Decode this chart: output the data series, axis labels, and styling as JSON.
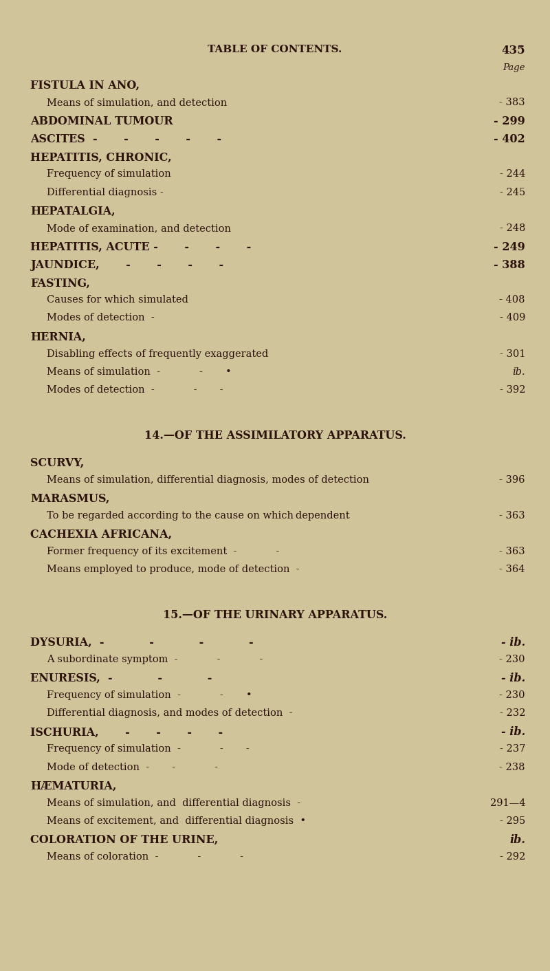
{
  "bg_color": "#cfc49a",
  "text_color": "#2d120a",
  "header_title": "TABLE OF CONTENTS.",
  "header_page_num": "435",
  "page_label": "Page",
  "figsize": [
    8.0,
    14.12
  ],
  "dpi": 100,
  "entries": [
    {
      "indent": 0,
      "bold": true,
      "text": "FISTULA IN ANO,",
      "page": "",
      "page_italic": false
    },
    {
      "indent": 1,
      "bold": false,
      "text": "Means of simulation, and detection",
      "dashes": "  -        -",
      "page": "- 383",
      "page_italic": false
    },
    {
      "indent": 0,
      "bold": true,
      "text": "ABDOMINAL TUMOUR",
      "dashes": " -     -    -",
      "page": "- 299",
      "page_italic": false
    },
    {
      "indent": 0,
      "bold": true,
      "text": "ASCITES  -     -     -     -     -",
      "page": "- 402",
      "page_italic": false
    },
    {
      "indent": 0,
      "bold": true,
      "text": "HEPATITIS, CHRONIC,",
      "page": "",
      "page_italic": false
    },
    {
      "indent": 1,
      "bold": false,
      "text": "Frequency of simulation",
      "dashes": " -     -     -",
      "page": "- 244",
      "page_italic": false
    },
    {
      "indent": 1,
      "bold": false,
      "text": "Differential diagnosis -",
      "dashes": "  -        -",
      "page": "- 245",
      "page_italic": false
    },
    {
      "indent": 0,
      "bold": true,
      "text": "HEPATALGIA,",
      "page": "",
      "page_italic": false
    },
    {
      "indent": 1,
      "bold": false,
      "text": "Mode of examination, and detection",
      "dashes": " •        -",
      "page": "- 248",
      "page_italic": false
    },
    {
      "indent": 0,
      "bold": true,
      "text": "HEPATITIS, ACUTE -     -     -     -",
      "page": "- 249",
      "page_italic": false
    },
    {
      "indent": 0,
      "bold": true,
      "text": "JAUNDICE,     -     -     -     -",
      "page": "- 388",
      "page_italic": false
    },
    {
      "indent": 0,
      "bold": true,
      "text": "FASTING,",
      "page": "",
      "page_italic": false
    },
    {
      "indent": 1,
      "bold": false,
      "text": "Causes for which simulated",
      "dashes": " -        -     -",
      "page": "- 408",
      "page_italic": false
    },
    {
      "indent": 1,
      "bold": false,
      "text": "Modes of detection  -",
      "dashes": "    -        -",
      "page": "- 409",
      "page_italic": false
    },
    {
      "indent": 0,
      "bold": true,
      "text": "HERNIA,",
      "page": "",
      "page_italic": false
    },
    {
      "indent": 1,
      "bold": false,
      "text": "Disabling effects of frequently exaggerated",
      "dashes": " -         ",
      "page": "- 301",
      "page_italic": false
    },
    {
      "indent": 1,
      "bold": false,
      "text": "Means of simulation  -        -     •",
      "page": "ib.",
      "page_italic": true
    },
    {
      "indent": 1,
      "bold": false,
      "text": "Modes of detection  -        -     -",
      "page": "- 392",
      "page_italic": false
    },
    {
      "indent": -1,
      "spacer": true,
      "spacer_size": 1.5
    },
    {
      "indent": 2,
      "bold": true,
      "text": "14.—OF THE ASSIMILATORY APPARATUS.",
      "center": true,
      "page": "",
      "page_italic": false
    },
    {
      "indent": -1,
      "spacer": true,
      "spacer_size": 0.5
    },
    {
      "indent": 0,
      "bold": true,
      "text": "SCURVY,",
      "page": "",
      "page_italic": false
    },
    {
      "indent": 1,
      "bold": false,
      "text": "Means of simulation, differential diagnosis, modes of detection",
      "page": "- 396",
      "page_italic": false
    },
    {
      "indent": 0,
      "bold": true,
      "text": "MARASMUS,",
      "page": "",
      "page_italic": false
    },
    {
      "indent": 1,
      "bold": false,
      "text": "To be regarded according to the cause on which dependent",
      "page": "- 363",
      "page_italic": false
    },
    {
      "indent": 0,
      "bold": true,
      "text": "CACHEXIA AFRICANA,",
      "page": "",
      "page_italic": false
    },
    {
      "indent": 1,
      "bold": false,
      "text": "Former frequency of its excitement  -        -",
      "page": "- 363",
      "page_italic": false
    },
    {
      "indent": 1,
      "bold": false,
      "text": "Means employed to produce, mode of detection  -",
      "page": "- 364",
      "page_italic": false
    },
    {
      "indent": -1,
      "spacer": true,
      "spacer_size": 1.5
    },
    {
      "indent": 2,
      "bold": true,
      "text": "15.—OF THE URINARY APPARATUS.",
      "center": true,
      "page": "",
      "page_italic": false
    },
    {
      "indent": -1,
      "spacer": true,
      "spacer_size": 0.5
    },
    {
      "indent": 0,
      "bold": true,
      "text": "DYSURIA,  -        -        -        -",
      "page": "- ib.",
      "page_italic": true
    },
    {
      "indent": 1,
      "bold": false,
      "text": "A subordinate symptom  -        -        -",
      "page": "- 230",
      "page_italic": false
    },
    {
      "indent": 0,
      "bold": true,
      "text": "ENURESIS,  -        -        -      ",
      "page": "- ib.",
      "page_italic": true
    },
    {
      "indent": 1,
      "bold": false,
      "text": "Frequency of simulation  -        -     •",
      "page": "- 230",
      "page_italic": false
    },
    {
      "indent": 1,
      "bold": false,
      "text": "Differential diagnosis, and modes of detection  -",
      "page": "- 232",
      "page_italic": false
    },
    {
      "indent": 0,
      "bold": true,
      "text": "ISCHURIA,     -     -     -     -",
      "page": "- ib.",
      "page_italic": true
    },
    {
      "indent": 1,
      "bold": false,
      "text": "Frequency of simulation  -        -     -",
      "page": "- 237",
      "page_italic": false
    },
    {
      "indent": 1,
      "bold": false,
      "text": "Mode of detection  -     -        -",
      "page": "- 238",
      "page_italic": false
    },
    {
      "indent": 0,
      "bold": true,
      "text": "HÆMATURIA,",
      "page": "",
      "page_italic": false
    },
    {
      "indent": 1,
      "bold": false,
      "text": "Means of simulation, and  differential diagnosis  -",
      "page": "291—4",
      "page_italic": false
    },
    {
      "indent": 1,
      "bold": false,
      "text": "Means of excitement, and  differential diagnosis  •",
      "page": "- 295",
      "page_italic": false
    },
    {
      "indent": 0,
      "bold": true,
      "text": "COLORATION OF THE URINE,",
      "page": "ib.",
      "page_italic": true
    },
    {
      "indent": 1,
      "bold": false,
      "text": "Means of coloration  -        -        -",
      "page": "- 292",
      "page_italic": false
    }
  ]
}
